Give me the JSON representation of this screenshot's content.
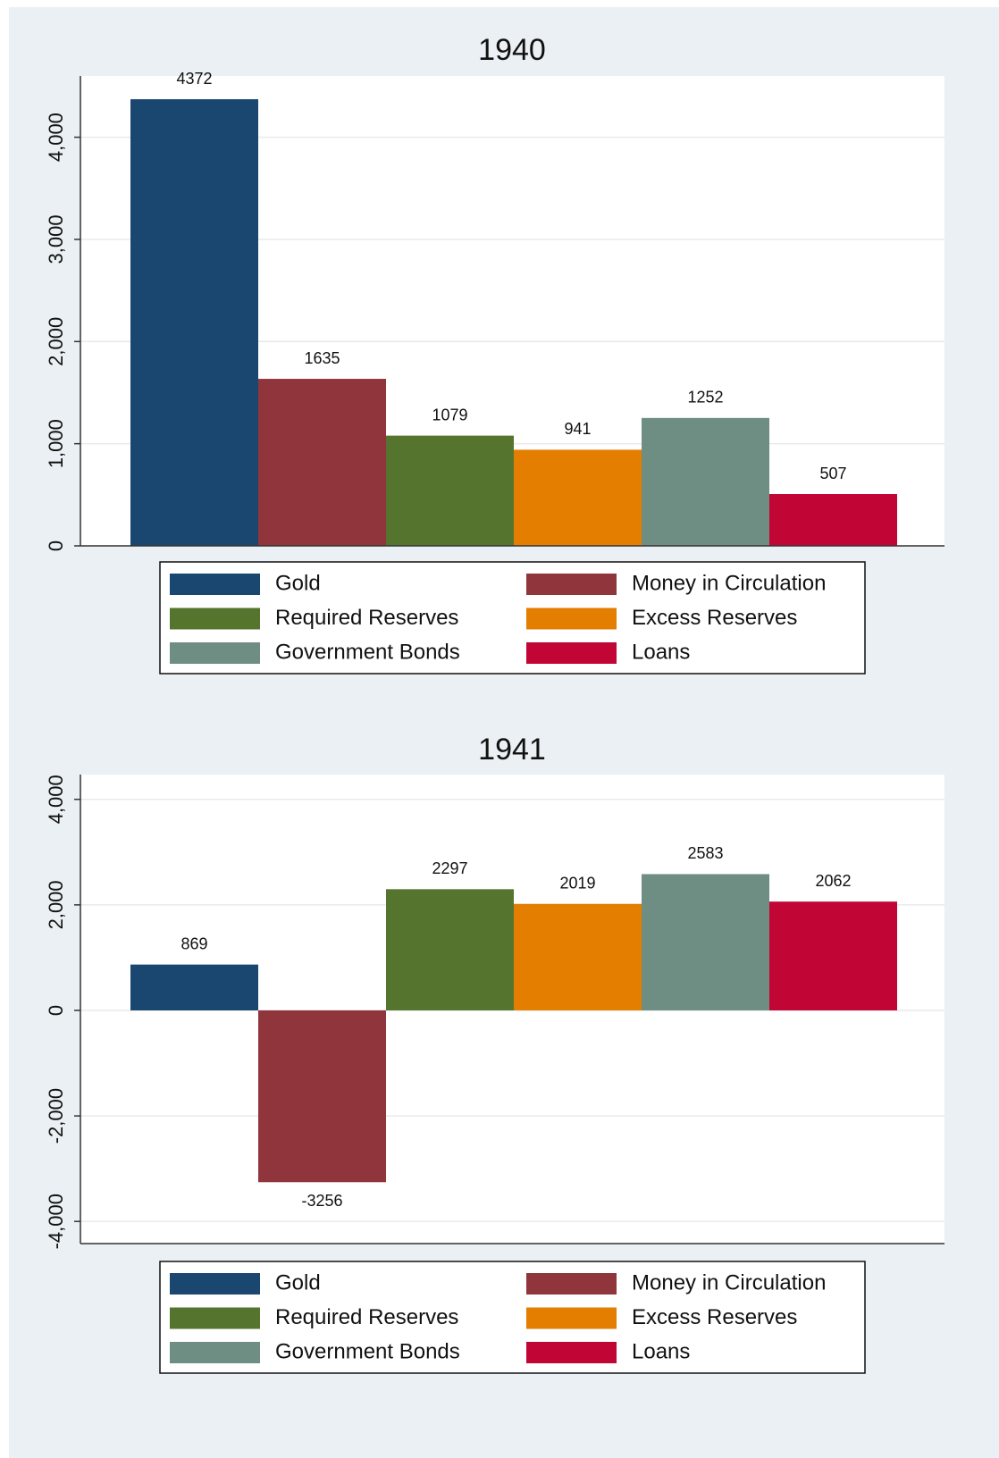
{
  "chart_data": [
    {
      "type": "bar",
      "title": "1940",
      "series": [
        {
          "name": "Gold",
          "color": "#1a476f",
          "values": [
            4372
          ]
        },
        {
          "name": "Money in Circulation",
          "color": "#90353b",
          "values": [
            1635
          ]
        },
        {
          "name": "Required Reserves",
          "color": "#55752f",
          "values": [
            1079
          ]
        },
        {
          "name": "Excess Reserves",
          "color": "#e37e00",
          "values": [
            941
          ]
        },
        {
          "name": "Government Bonds",
          "color": "#6e8e84",
          "values": [
            1252
          ]
        },
        {
          "name": "Loans",
          "color": "#c10534",
          "values": [
            507
          ]
        }
      ],
      "ylim": [
        0,
        4600
      ],
      "yticks": [
        0,
        {
          "value": 1000,
          "label": "1,000"
        },
        {
          "value": 2000,
          "label": "2,000"
        },
        {
          "value": 3000,
          "label": "3,000"
        },
        {
          "value": 4000,
          "label": "4,000"
        }
      ],
      "grid": true
    },
    {
      "type": "bar",
      "title": "1941",
      "series": [
        {
          "name": "Gold",
          "color": "#1a476f",
          "values": [
            869
          ]
        },
        {
          "name": "Money in Circulation",
          "color": "#90353b",
          "values": [
            -3256
          ]
        },
        {
          "name": "Required Reserves",
          "color": "#55752f",
          "values": [
            2297
          ]
        },
        {
          "name": "Excess Reserves",
          "color": "#e37e00",
          "values": [
            2019
          ]
        },
        {
          "name": "Government Bonds",
          "color": "#6e8e84",
          "values": [
            2583
          ]
        },
        {
          "name": "Loans",
          "color": "#c10534",
          "values": [
            2062
          ]
        }
      ],
      "ylim": [
        -4420,
        4470
      ],
      "yticks": [
        {
          "value": -4000,
          "label": "-4,000"
        },
        {
          "value": -2000,
          "label": "-2,000"
        },
        0,
        {
          "value": 2000,
          "label": "2,000"
        },
        {
          "value": 4000,
          "label": "4,000"
        }
      ],
      "grid": true
    }
  ]
}
